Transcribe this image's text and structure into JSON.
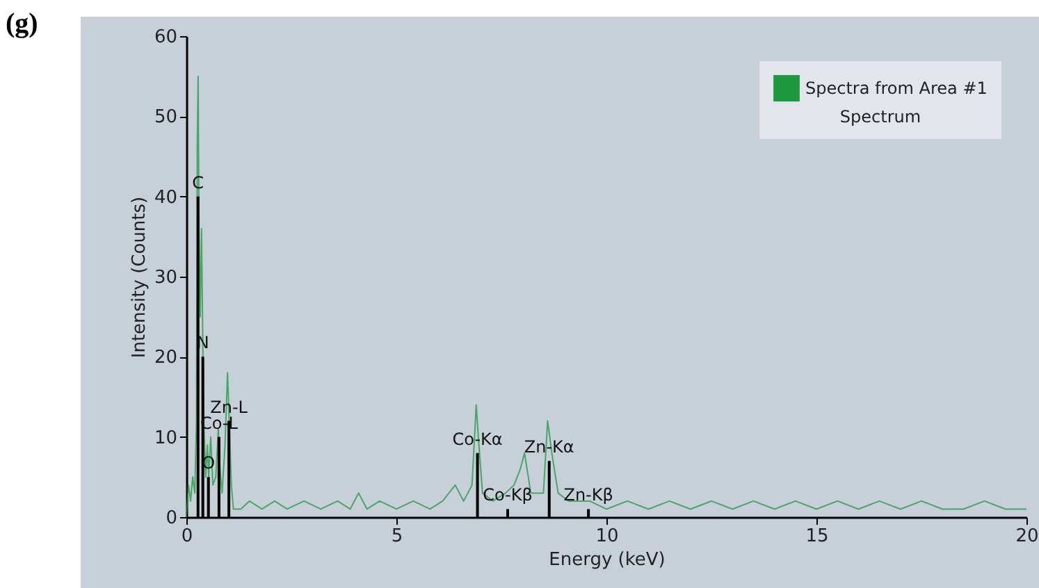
{
  "chart_data": {
    "type": "line",
    "xlabel": "Energy (keV)",
    "ylabel": "Intensity (Counts)",
    "legend_title": "Spectrum",
    "legend": "top right",
    "xlim": [
      0,
      20
    ],
    "xticks": [
      0,
      5,
      10,
      15,
      20
    ],
    "ylim": [
      0,
      60
    ],
    "yticks": [
      0,
      10,
      20,
      30,
      40,
      50,
      60
    ],
    "grid": false,
    "series": [
      {
        "name": "Spectra from Area #1",
        "color": "#1e9940",
        "x": [
          0.0,
          0.05,
          0.1,
          0.15,
          0.2,
          0.24,
          0.26,
          0.28,
          0.3,
          0.33,
          0.36,
          0.39,
          0.42,
          0.46,
          0.5,
          0.53,
          0.58,
          0.63,
          0.7,
          0.76,
          0.8,
          0.85,
          0.92,
          0.98,
          1.02,
          1.07,
          1.12,
          1.3,
          1.5,
          1.8,
          2.1,
          2.4,
          2.8,
          3.2,
          3.6,
          3.9,
          4.1,
          4.3,
          4.6,
          5.0,
          5.4,
          5.8,
          6.1,
          6.4,
          6.6,
          6.8,
          6.9,
          6.95,
          7.05,
          7.3,
          7.6,
          7.8,
          7.95,
          8.05,
          8.2,
          8.5,
          8.6,
          8.7,
          8.85,
          9.1,
          9.6,
          10.0,
          10.5,
          11.0,
          11.5,
          12.0,
          12.5,
          13.0,
          13.5,
          14.0,
          14.5,
          15.0,
          15.5,
          16.0,
          16.5,
          17.0,
          17.5,
          18.0,
          18.5,
          19.0,
          19.5,
          20.0
        ],
        "values": [
          0,
          4,
          2,
          5,
          3,
          12,
          47,
          55,
          36,
          25,
          36,
          22,
          11,
          5,
          9,
          5,
          10,
          4,
          5,
          11,
          6,
          3,
          9,
          18,
          12,
          4,
          1,
          1,
          2,
          1,
          2,
          1,
          2,
          1,
          2,
          1,
          3,
          1,
          2,
          1,
          2,
          1,
          2,
          4,
          2,
          4,
          14,
          10,
          3,
          2,
          3,
          4,
          6,
          8,
          3,
          3,
          12,
          8,
          3,
          2,
          2,
          1,
          2,
          1,
          2,
          1,
          2,
          1,
          2,
          1,
          2,
          1,
          2,
          1,
          2,
          1,
          2,
          1,
          1,
          2,
          1,
          1
        ]
      },
      {
        "type": "bar",
        "color": "#000000",
        "x": [
          0.277,
          0.392,
          0.525,
          0.776,
          1.012,
          6.93,
          7.649,
          8.638,
          9.572
        ],
        "values": [
          40,
          20,
          5,
          10,
          12,
          8,
          1,
          7,
          1
        ]
      }
    ],
    "annotations": [
      "(g)",
      {
        "text": "C",
        "x": 0.277,
        "y": 40
      },
      {
        "text": "N",
        "x": 0.392,
        "y": 20
      },
      {
        "text": "O",
        "x": 0.525,
        "y": 5
      },
      {
        "text": "Co-L",
        "x": 0.776,
        "y": 10
      },
      {
        "text": "Zn-L",
        "x": 1.012,
        "y": 12
      },
      {
        "text": "Co-Kα",
        "x": 6.93,
        "y": 8
      },
      {
        "text": "Co-Kβ",
        "x": 7.649,
        "y": 1
      },
      {
        "text": "Zn-Kα",
        "x": 8.638,
        "y": 7
      },
      {
        "text": "Zn-Kβ",
        "x": 9.572,
        "y": 1
      }
    ]
  }
}
